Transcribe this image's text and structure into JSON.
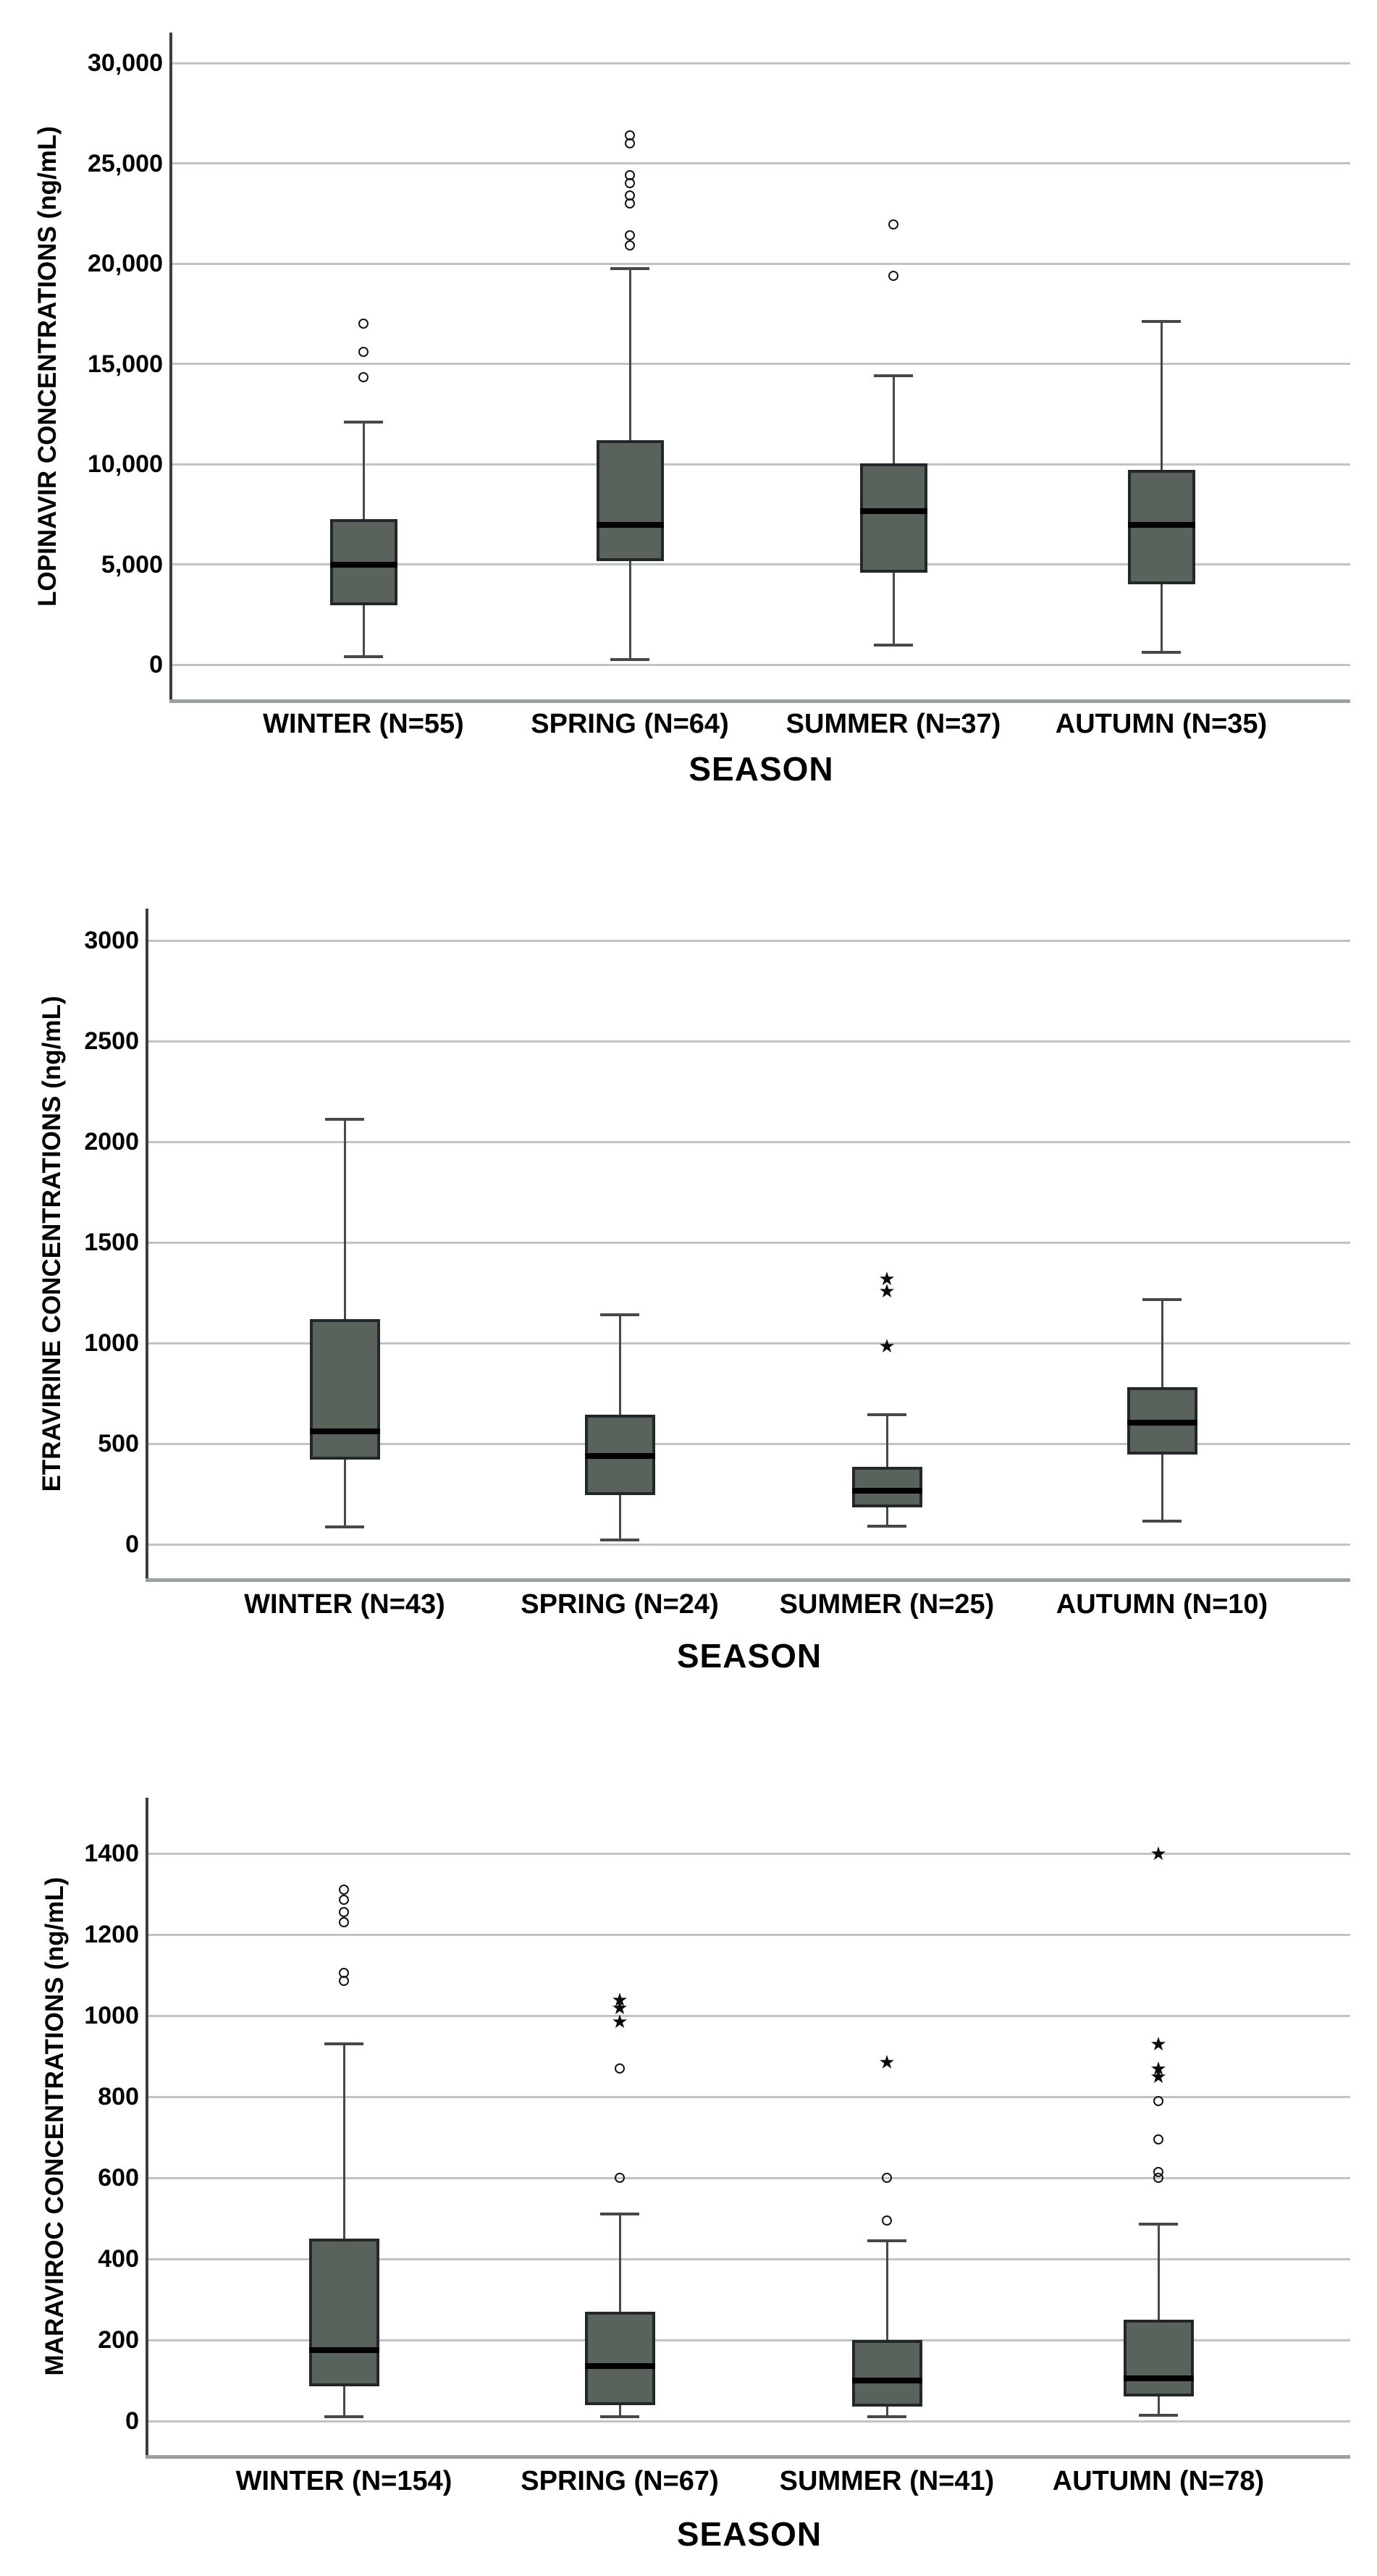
{
  "figure": {
    "background": "#ffffff",
    "description": "Three stacked box plots of antiretroviral drug concentrations by season"
  },
  "style": {
    "box_fill": "#5a625c",
    "box_border": "#23272a",
    "median_color": "#000000",
    "whisker_color": "#46484c",
    "gridline_color": "#bfc4c5",
    "bottom_axis_color": "#9aa0a2",
    "y_axis_color": "#3c3f41",
    "text_color": "#000000",
    "outlier_marker": "circle",
    "extreme_marker": "star"
  },
  "chart_data": [
    {
      "type": "box",
      "title": "",
      "ylabel": "LOPINAVIR CONCENTRATIONS (ng/mL)",
      "xlabel": "SEASON",
      "ylim": [
        0,
        30000
      ],
      "grid": true,
      "legend_position": "none",
      "yticks": [
        {
          "value": 0,
          "label": "0"
        },
        {
          "value": 5000,
          "label": "5,000"
        },
        {
          "value": 10000,
          "label": "10,000"
        },
        {
          "value": 15000,
          "label": "15,000"
        },
        {
          "value": 20000,
          "label": "20,000"
        },
        {
          "value": 25000,
          "label": "25,000"
        },
        {
          "value": 30000,
          "label": "30,000"
        }
      ],
      "categories": [
        "WINTER (N=55)",
        "SPRING (N=64)",
        "SUMMER (N=37)",
        "AUTUMN (N=35)"
      ],
      "boxes": [
        {
          "whisker_low": 400,
          "q1": 2950,
          "median": 5000,
          "q3": 7250,
          "whisker_high": 12100,
          "outliers": [
            14350,
            15600,
            17000
          ],
          "extremes": []
        },
        {
          "whisker_low": 250,
          "q1": 5150,
          "median": 6950,
          "q3": 11200,
          "whisker_high": 19750,
          "outliers": [
            20900,
            21400,
            23000,
            23400,
            24000,
            24400,
            26000,
            26400
          ],
          "extremes": []
        },
        {
          "whisker_low": 975,
          "q1": 4600,
          "median": 7650,
          "q3": 10050,
          "whisker_high": 14400,
          "outliers": [
            19400,
            21950
          ],
          "extremes": []
        },
        {
          "whisker_low": 600,
          "q1": 4000,
          "median": 6950,
          "q3": 9700,
          "whisker_high": 17100,
          "outliers": [],
          "extremes": []
        }
      ]
    },
    {
      "type": "box",
      "title": "",
      "ylabel": "ETRAVIRINE CONCENTRATIONS (ng/mL)",
      "xlabel": "SEASON",
      "ylim": [
        0,
        3000
      ],
      "grid": true,
      "legend_position": "none",
      "yticks": [
        {
          "value": 0,
          "label": "0"
        },
        {
          "value": 500,
          "label": "500"
        },
        {
          "value": 1000,
          "label": "1000"
        },
        {
          "value": 1500,
          "label": "1500"
        },
        {
          "value": 2000,
          "label": "2000"
        },
        {
          "value": 2500,
          "label": "2500"
        },
        {
          "value": 3000,
          "label": "3000"
        }
      ],
      "categories": [
        "WINTER (N=43)",
        "SPRING (N=24)",
        "SUMMER (N=25)",
        "AUTUMN (N=10)"
      ],
      "boxes": [
        {
          "whisker_low": 85,
          "q1": 420,
          "median": 560,
          "q3": 1120,
          "whisker_high": 2110,
          "outliers": [],
          "extremes": []
        },
        {
          "whisker_low": 20,
          "q1": 245,
          "median": 440,
          "q3": 645,
          "whisker_high": 1140,
          "outliers": [],
          "extremes": []
        },
        {
          "whisker_low": 90,
          "q1": 185,
          "median": 265,
          "q3": 385,
          "whisker_high": 645,
          "outliers": [],
          "extremes": [
            985,
            1260,
            1320
          ]
        },
        {
          "whisker_low": 115,
          "q1": 445,
          "median": 605,
          "q3": 780,
          "whisker_high": 1215,
          "outliers": [],
          "extremes": []
        }
      ]
    },
    {
      "type": "box",
      "title": "",
      "ylabel": "MARAVIROC CONCENTRATIONS (ng/mL)",
      "xlabel": "SEASON",
      "ylim": [
        0,
        1400
      ],
      "grid": true,
      "legend_position": "none",
      "yticks": [
        {
          "value": 0,
          "label": "0"
        },
        {
          "value": 200,
          "label": "200"
        },
        {
          "value": 400,
          "label": "400"
        },
        {
          "value": 600,
          "label": "600"
        },
        {
          "value": 800,
          "label": "800"
        },
        {
          "value": 1000,
          "label": "1000"
        },
        {
          "value": 1200,
          "label": "1200"
        },
        {
          "value": 1400,
          "label": "1400"
        }
      ],
      "categories": [
        "WINTER (N=154)",
        "SPRING (N=67)",
        "SUMMER (N=41)",
        "AUTUMN (N=78)"
      ],
      "boxes": [
        {
          "whisker_low": 10,
          "q1": 85,
          "median": 175,
          "q3": 450,
          "whisker_high": 930,
          "outliers": [
            1085,
            1105,
            1230,
            1255,
            1285,
            1310
          ],
          "extremes": []
        },
        {
          "whisker_low": 10,
          "q1": 40,
          "median": 135,
          "q3": 270,
          "whisker_high": 510,
          "outliers": [
            600,
            870
          ],
          "extremes": [
            985,
            1020,
            1040
          ]
        },
        {
          "whisker_low": 10,
          "q1": 35,
          "median": 100,
          "q3": 200,
          "whisker_high": 445,
          "outliers": [
            495,
            600
          ],
          "extremes": [
            885
          ]
        },
        {
          "whisker_low": 15,
          "q1": 60,
          "median": 105,
          "q3": 250,
          "whisker_high": 485,
          "outliers": [
            600,
            615,
            695,
            790
          ],
          "extremes": [
            850,
            870,
            930,
            1400
          ]
        }
      ]
    }
  ]
}
